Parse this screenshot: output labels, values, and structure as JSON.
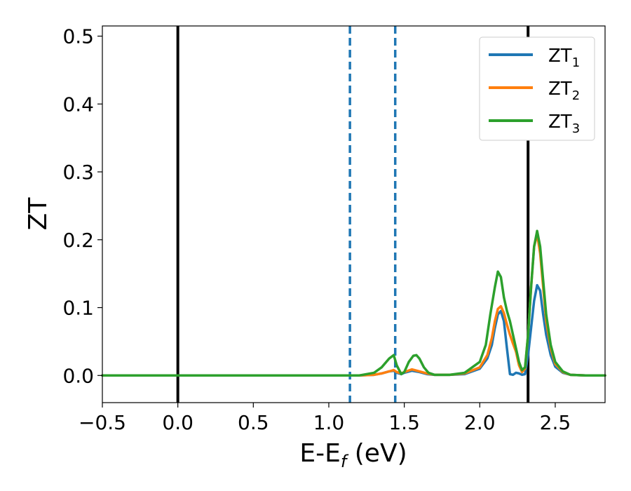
{
  "chart_data": {
    "type": "line",
    "xlabel": {
      "main": "E-E",
      "sub": "f",
      "rest": " (eV)"
    },
    "ylabel": "ZT",
    "xlim": [
      -0.5,
      2.83
    ],
    "ylim": [
      -0.04,
      0.515
    ],
    "xticks": [
      -0.5,
      0.0,
      0.5,
      1.0,
      1.5,
      2.0,
      2.5
    ],
    "xtick_labels": [
      "−0.5",
      "0.0",
      "0.5",
      "1.0",
      "1.5",
      "2.0",
      "2.5"
    ],
    "yticks": [
      0.0,
      0.1,
      0.2,
      0.3,
      0.4,
      0.5
    ],
    "ytick_labels": [
      "0.0",
      "0.1",
      "0.2",
      "0.3",
      "0.4",
      "0.5"
    ],
    "grid": false,
    "legend_position": "top-right",
    "vertical_lines": [
      {
        "x": 0.0,
        "color": "#000000",
        "style": "solid"
      },
      {
        "x": 1.14,
        "color": "#1f77b4",
        "style": "dashed"
      },
      {
        "x": 1.44,
        "color": "#1f77b4",
        "style": "dashed"
      },
      {
        "x": 2.32,
        "color": "#000000",
        "style": "solid"
      }
    ],
    "series": [
      {
        "name": "ZT",
        "sub": "1",
        "color": "#1f77b4",
        "x": [
          -0.5,
          1.2,
          1.3,
          1.35,
          1.4,
          1.43,
          1.45,
          1.48,
          1.5,
          1.55,
          1.6,
          1.65,
          1.7,
          1.8,
          1.9,
          2.0,
          2.05,
          2.08,
          2.1,
          2.12,
          2.14,
          2.16,
          2.18,
          2.2,
          2.22,
          2.24,
          2.26,
          2.28,
          2.3,
          2.32,
          2.34,
          2.36,
          2.38,
          2.4,
          2.42,
          2.44,
          2.47,
          2.5,
          2.55,
          2.6,
          2.7,
          2.83
        ],
        "y": [
          0.0,
          0.0,
          0.001,
          0.003,
          0.006,
          0.007,
          0.004,
          0.002,
          0.004,
          0.007,
          0.005,
          0.002,
          0.001,
          0.001,
          0.002,
          0.01,
          0.025,
          0.045,
          0.07,
          0.09,
          0.095,
          0.08,
          0.04,
          0.002,
          0.001,
          0.004,
          0.003,
          0.001,
          0.002,
          0.03,
          0.07,
          0.11,
          0.133,
          0.125,
          0.09,
          0.06,
          0.03,
          0.013,
          0.004,
          0.001,
          0.0,
          0.0
        ]
      },
      {
        "name": "ZT",
        "sub": "2",
        "color": "#ff7f0e",
        "x": [
          -0.5,
          1.2,
          1.3,
          1.35,
          1.4,
          1.43,
          1.45,
          1.48,
          1.5,
          1.55,
          1.6,
          1.65,
          1.7,
          1.8,
          1.9,
          2.0,
          2.05,
          2.08,
          2.1,
          2.12,
          2.14,
          2.16,
          2.18,
          2.2,
          2.22,
          2.24,
          2.26,
          2.28,
          2.3,
          2.32,
          2.34,
          2.36,
          2.38,
          2.4,
          2.42,
          2.44,
          2.47,
          2.5,
          2.55,
          2.6,
          2.7,
          2.83
        ],
        "y": [
          0.0,
          0.0,
          0.001,
          0.003,
          0.006,
          0.008,
          0.005,
          0.003,
          0.005,
          0.009,
          0.006,
          0.003,
          0.001,
          0.001,
          0.003,
          0.012,
          0.03,
          0.055,
          0.08,
          0.098,
          0.102,
          0.092,
          0.075,
          0.06,
          0.047,
          0.035,
          0.015,
          0.005,
          0.01,
          0.06,
          0.13,
          0.19,
          0.208,
          0.18,
          0.13,
          0.08,
          0.04,
          0.017,
          0.005,
          0.001,
          0.0,
          0.0
        ]
      },
      {
        "name": "ZT",
        "sub": "3",
        "color": "#2ca02c",
        "x": [
          -0.5,
          1.2,
          1.3,
          1.35,
          1.4,
          1.43,
          1.45,
          1.48,
          1.5,
          1.53,
          1.56,
          1.58,
          1.6,
          1.63,
          1.66,
          1.7,
          1.8,
          1.9,
          2.0,
          2.04,
          2.07,
          2.1,
          2.12,
          2.14,
          2.16,
          2.18,
          2.2,
          2.22,
          2.24,
          2.26,
          2.28,
          2.3,
          2.32,
          2.34,
          2.36,
          2.38,
          2.4,
          2.42,
          2.44,
          2.47,
          2.5,
          2.55,
          2.6,
          2.7,
          2.83
        ],
        "y": [
          0.0,
          0.0,
          0.004,
          0.012,
          0.025,
          0.03,
          0.015,
          0.002,
          0.005,
          0.02,
          0.029,
          0.03,
          0.025,
          0.012,
          0.004,
          0.001,
          0.001,
          0.004,
          0.02,
          0.045,
          0.09,
          0.13,
          0.153,
          0.145,
          0.115,
          0.095,
          0.08,
          0.06,
          0.04,
          0.02,
          0.008,
          0.012,
          0.06,
          0.13,
          0.19,
          0.213,
          0.19,
          0.14,
          0.09,
          0.045,
          0.02,
          0.006,
          0.001,
          0.0,
          0.0
        ]
      }
    ]
  }
}
